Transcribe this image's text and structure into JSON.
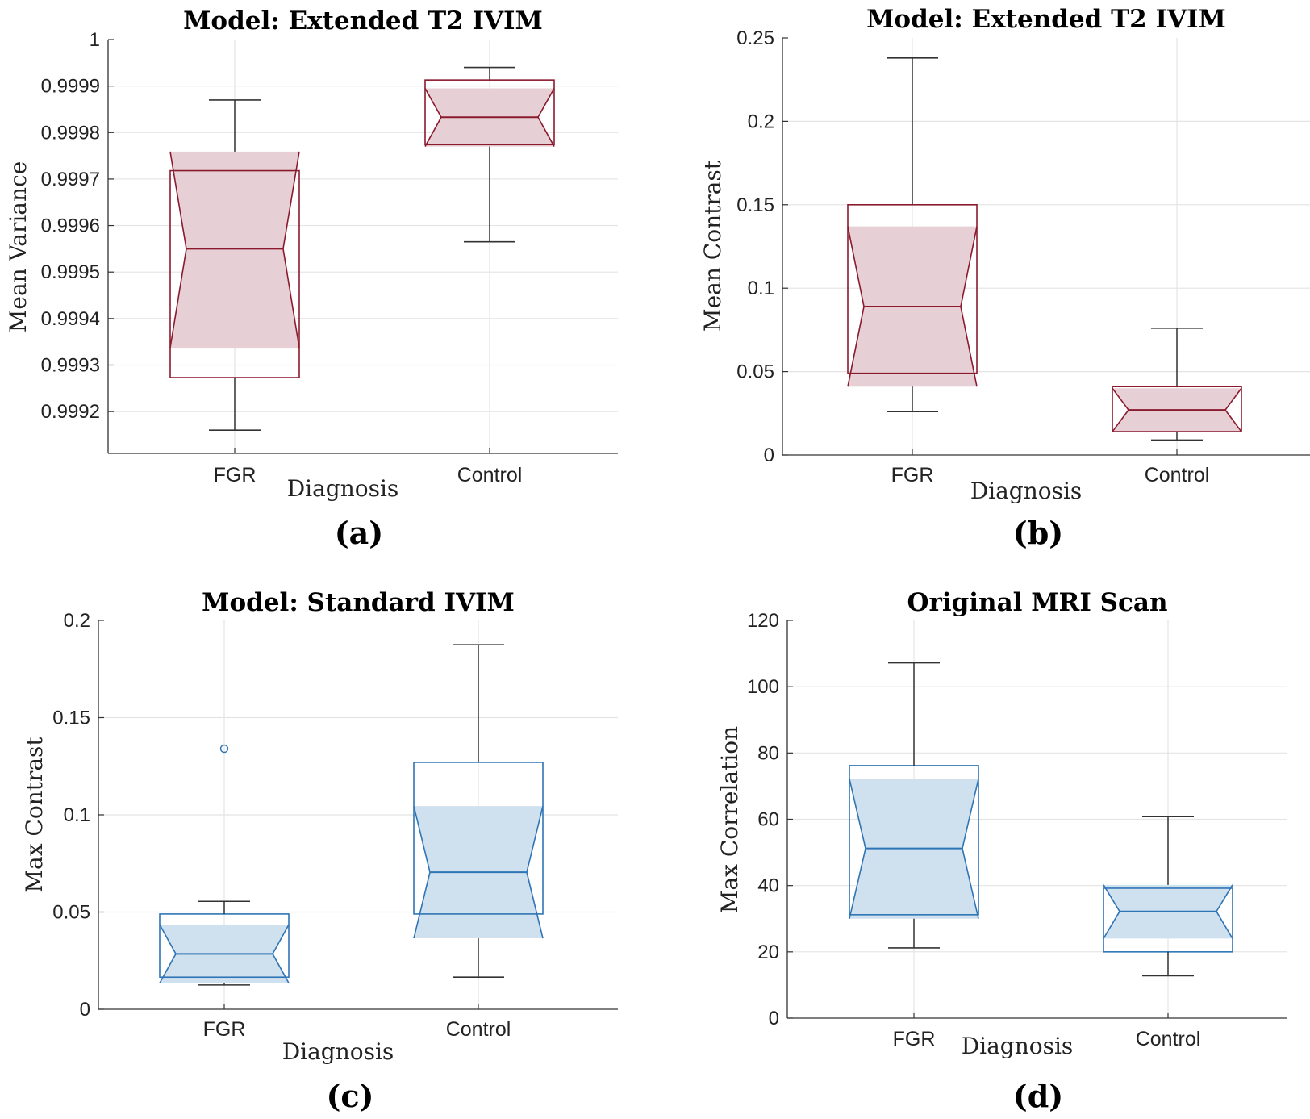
{
  "figure": {
    "panel_labels": [
      "(a)",
      "(b)",
      "(c)",
      "(d)"
    ]
  },
  "style": {
    "red_edge": "#8b1a2e",
    "red_fill": "#e6d0d5",
    "blue_edge": "#2f75b5",
    "blue_fill": "#cfe0ee",
    "whisker": "#333333",
    "grid": "#e4e4e4",
    "axis": "#333333"
  },
  "chart_data": [
    {
      "type": "box",
      "panel": "(a)",
      "title": "Model: Extended T2 IVIM",
      "xlabel": "Diagnosis",
      "ylabel": "Mean Variance",
      "categories": [
        "FGR",
        "Control"
      ],
      "ylim": [
        0.99911,
        1.0
      ],
      "yticks": [
        0.9992,
        0.9993,
        0.9994,
        0.9995,
        0.9996,
        0.9997,
        0.9998,
        0.9999,
        1
      ],
      "ytick_labels": [
        "0.9992",
        "0.9993",
        "0.9994",
        "0.9995",
        "0.9996",
        "0.9997",
        "0.9998",
        "0.9999",
        "1"
      ],
      "color": "red",
      "boxes": [
        {
          "category": "FGR",
          "whisker_low": 0.99916,
          "q1": 0.999273,
          "median": 0.99955,
          "q3": 0.999718,
          "whisker_high": 0.99987,
          "notch_low": 0.999337,
          "notch_high": 0.999759,
          "outliers": []
        },
        {
          "category": "Control",
          "whisker_low": 0.999565,
          "q1": 0.999774,
          "median": 0.999833,
          "q3": 0.999913,
          "whisker_high": 0.99994,
          "notch_low": 0.99977,
          "notch_high": 0.999895,
          "outliers": []
        }
      ]
    },
    {
      "type": "box",
      "panel": "(b)",
      "title": "Model: Extended T2 IVIM",
      "xlabel": "Diagnosis",
      "ylabel": "Mean Contrast",
      "categories": [
        "FGR",
        "Control"
      ],
      "ylim": [
        0,
        0.25
      ],
      "yticks": [
        0,
        0.05,
        0.1,
        0.15,
        0.2,
        0.25
      ],
      "ytick_labels": [
        "0",
        "0.05",
        "0.1",
        "0.15",
        "0.2",
        "0.25"
      ],
      "color": "red",
      "boxes": [
        {
          "category": "FGR",
          "whisker_low": 0.026,
          "q1": 0.049,
          "median": 0.089,
          "q3": 0.15,
          "whisker_high": 0.238,
          "notch_low": 0.041,
          "notch_high": 0.137,
          "outliers": []
        },
        {
          "category": "Control",
          "whisker_low": 0.009,
          "q1": 0.014,
          "median": 0.027,
          "q3": 0.041,
          "whisker_high": 0.076,
          "notch_low": 0.014,
          "notch_high": 0.04,
          "outliers": []
        }
      ]
    },
    {
      "type": "box",
      "panel": "(c)",
      "title": "Model: Standard IVIM",
      "xlabel": "Diagnosis",
      "ylabel": "Max Contrast",
      "categories": [
        "FGR",
        "Control"
      ],
      "ylim": [
        0,
        0.2
      ],
      "yticks": [
        0,
        0.05,
        0.1,
        0.15,
        0.2
      ],
      "ytick_labels": [
        "0",
        "0.05",
        "0.1",
        "0.15",
        "0.2"
      ],
      "color": "blue",
      "boxes": [
        {
          "category": "FGR",
          "whisker_low": 0.0125,
          "q1": 0.0165,
          "median": 0.0285,
          "q3": 0.049,
          "whisker_high": 0.0555,
          "notch_low": 0.0135,
          "notch_high": 0.0435,
          "outliers": [
            0.134
          ]
        },
        {
          "category": "Control",
          "whisker_low": 0.0165,
          "q1": 0.049,
          "median": 0.0705,
          "q3": 0.127,
          "whisker_high": 0.1875,
          "notch_low": 0.0365,
          "notch_high": 0.1045,
          "outliers": []
        }
      ]
    },
    {
      "type": "box",
      "panel": "(d)",
      "title": "Original MRI Scan",
      "xlabel": "Diagnosis",
      "ylabel": "Max Correlation",
      "categories": [
        "FGR",
        "Control"
      ],
      "ylim": [
        0,
        120
      ],
      "yticks": [
        0,
        20,
        40,
        60,
        80,
        100,
        120
      ],
      "ytick_labels": [
        "0",
        "20",
        "40",
        "60",
        "80",
        "100",
        "120"
      ],
      "color": "blue",
      "boxes": [
        {
          "category": "FGR",
          "whisker_low": 21.2,
          "q1": 31.2,
          "median": 51.2,
          "q3": 76.2,
          "whisker_high": 107.2,
          "notch_low": 30.0,
          "notch_high": 72.2,
          "outliers": []
        },
        {
          "category": "Control",
          "whisker_low": 12.8,
          "q1": 20.0,
          "median": 32.2,
          "q3": 39.2,
          "whisker_high": 60.8,
          "notch_low": 24.0,
          "notch_high": 40.2,
          "outliers": []
        }
      ]
    }
  ]
}
